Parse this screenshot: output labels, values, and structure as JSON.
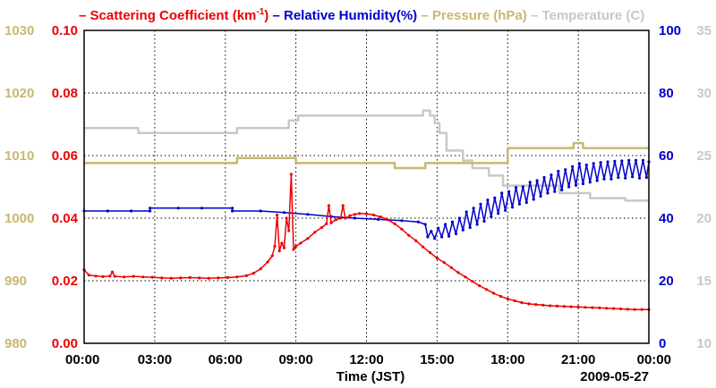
{
  "chart_data": {
    "type": "line",
    "title": "",
    "xlabel": "Time (JST)",
    "date_label": "2009-05-27",
    "x_unit": "hour",
    "xlim": [
      0,
      24
    ],
    "x_ticks": [
      0,
      3,
      6,
      9,
      12,
      15,
      18,
      21,
      24
    ],
    "x_tick_labels": [
      "00:00",
      "03:00",
      "06:00",
      "09:00",
      "12:00",
      "15:00",
      "18:00",
      "21:00",
      "00:00"
    ],
    "grid": true,
    "legend": {
      "position": "top",
      "entries": [
        {
          "name": "Scattering Coefficient (km",
          "sup": "-1",
          "suffix": ")",
          "color": "#ee0000"
        },
        {
          "name": "Relative Humidity(%)",
          "sup": "",
          "suffix": "",
          "color": "#0000cc"
        },
        {
          "name": "Pressure (hPa)",
          "sup": "",
          "suffix": "",
          "color": "#c8b870"
        },
        {
          "name": "Temperature (C)",
          "sup": "",
          "suffix": "",
          "color": "#c8c8c8"
        }
      ]
    },
    "axes": {
      "pressure": {
        "side": "left-outer",
        "color": "#c8b870",
        "ylim": [
          980,
          1030
        ],
        "ticks": [
          980,
          990,
          1000,
          1010,
          1020,
          1030
        ]
      },
      "scattering": {
        "side": "left-inner",
        "color": "#ee0000",
        "ylim": [
          0.0,
          0.1
        ],
        "ticks": [
          "0.00",
          "0.02",
          "0.04",
          "0.06",
          "0.08",
          "0.10"
        ]
      },
      "humidity": {
        "side": "right-inner",
        "color": "#0000cc",
        "ylim": [
          0,
          100
        ],
        "ticks": [
          0,
          20,
          40,
          60,
          80,
          100
        ]
      },
      "temperature": {
        "side": "right-outer",
        "color": "#c8c8c8",
        "ylim": [
          10,
          35
        ],
        "ticks": [
          10,
          15,
          20,
          25,
          30,
          35
        ]
      }
    },
    "series": [
      {
        "name": "Temperature (C)",
        "axis": "temperature",
        "color": "#c8c8c8",
        "style": "step",
        "width": 2.5,
        "markers": false,
        "points": [
          [
            0,
            27.2
          ],
          [
            2.3,
            27.2
          ],
          [
            2.3,
            26.8
          ],
          [
            6.5,
            26.8
          ],
          [
            6.5,
            27.2
          ],
          [
            8.7,
            27.2
          ],
          [
            8.7,
            27.8
          ],
          [
            9.1,
            27.8
          ],
          [
            9.1,
            28.2
          ],
          [
            14.4,
            28.2
          ],
          [
            14.4,
            28.6
          ],
          [
            14.7,
            28.6
          ],
          [
            14.7,
            28.2
          ],
          [
            14.9,
            28.2
          ],
          [
            14.9,
            27.6
          ],
          [
            15.1,
            27.6
          ],
          [
            15.1,
            26.8
          ],
          [
            15.4,
            26.8
          ],
          [
            15.4,
            25.4
          ],
          [
            16.1,
            25.4
          ],
          [
            16.1,
            24.6
          ],
          [
            16.5,
            24.6
          ],
          [
            16.5,
            24.0
          ],
          [
            17.2,
            24.0
          ],
          [
            17.2,
            23.4
          ],
          [
            17.8,
            23.4
          ],
          [
            17.8,
            22.6
          ],
          [
            19.5,
            22.6
          ],
          [
            19.5,
            22.6
          ],
          [
            20.2,
            22.6
          ],
          [
            20.2,
            22.0
          ],
          [
            21.5,
            22.0
          ],
          [
            21.5,
            21.6
          ],
          [
            23.0,
            21.6
          ],
          [
            23.0,
            21.4
          ],
          [
            24,
            21.4
          ]
        ]
      },
      {
        "name": "Pressure (hPa)",
        "axis": "pressure",
        "color": "#c8b870",
        "style": "step",
        "width": 2.5,
        "markers": false,
        "points": [
          [
            0,
            1008.8
          ],
          [
            6.5,
            1008.8
          ],
          [
            6.5,
            1009.6
          ],
          [
            9.0,
            1009.6
          ],
          [
            9.0,
            1008.8
          ],
          [
            13.2,
            1008.8
          ],
          [
            13.2,
            1008.0
          ],
          [
            14.5,
            1008.0
          ],
          [
            14.5,
            1008.8
          ],
          [
            18.0,
            1008.8
          ],
          [
            18.0,
            1011.2
          ],
          [
            20.8,
            1011.2
          ],
          [
            20.8,
            1012.0
          ],
          [
            21.2,
            1012.0
          ],
          [
            21.2,
            1011.2
          ],
          [
            24,
            1011.2
          ]
        ]
      },
      {
        "name": "Relative Humidity(%)",
        "axis": "humidity",
        "color": "#0000cc",
        "style": "line",
        "width": 1.5,
        "markers": true,
        "points": [
          [
            0.0,
            42.3
          ],
          [
            1.0,
            42.3
          ],
          [
            2.0,
            42.3
          ],
          [
            2.8,
            42.3
          ],
          [
            2.8,
            43.2
          ],
          [
            4.0,
            43.2
          ],
          [
            5.0,
            43.2
          ],
          [
            6.3,
            43.2
          ],
          [
            6.3,
            42.3
          ],
          [
            7.5,
            42.3
          ],
          [
            8.5,
            41.8
          ],
          [
            9.5,
            41.2
          ],
          [
            10.5,
            40.5
          ],
          [
            11.5,
            40.0
          ],
          [
            12.5,
            39.6
          ],
          [
            13.5,
            39.2
          ],
          [
            14.2,
            38.8
          ],
          [
            14.5,
            38.0
          ],
          [
            14.6,
            34.0
          ],
          [
            14.75,
            35.8
          ],
          [
            14.9,
            33.5
          ],
          [
            15.05,
            36.8
          ],
          [
            15.2,
            34.0
          ],
          [
            15.35,
            38.0
          ],
          [
            15.5,
            34.2
          ],
          [
            15.65,
            38.8
          ],
          [
            15.8,
            35.0
          ],
          [
            15.95,
            40.0
          ],
          [
            16.1,
            36.2
          ],
          [
            16.25,
            42.0
          ],
          [
            16.4,
            37.0
          ],
          [
            16.55,
            43.2
          ],
          [
            16.7,
            38.0
          ],
          [
            16.85,
            44.5
          ],
          [
            17.0,
            39.0
          ],
          [
            17.15,
            45.8
          ],
          [
            17.3,
            40.5
          ],
          [
            17.45,
            46.5
          ],
          [
            17.6,
            41.5
          ],
          [
            17.75,
            48.0
          ],
          [
            17.9,
            42.5
          ],
          [
            18.05,
            48.5
          ],
          [
            18.2,
            43.5
          ],
          [
            18.35,
            49.8
          ],
          [
            18.5,
            44.5
          ],
          [
            18.65,
            50.0
          ],
          [
            18.8,
            45.0
          ],
          [
            18.95,
            51.5
          ],
          [
            19.1,
            46.0
          ],
          [
            19.25,
            52.0
          ],
          [
            19.4,
            47.0
          ],
          [
            19.55,
            53.0
          ],
          [
            19.7,
            48.0
          ],
          [
            19.85,
            53.8
          ],
          [
            20.0,
            48.5
          ],
          [
            20.15,
            55.0
          ],
          [
            20.3,
            49.0
          ],
          [
            20.45,
            55.5
          ],
          [
            20.6,
            50.0
          ],
          [
            20.75,
            56.5
          ],
          [
            20.9,
            50.5
          ],
          [
            21.05,
            57.5
          ],
          [
            21.2,
            51.0
          ],
          [
            21.35,
            57.0
          ],
          [
            21.5,
            51.5
          ],
          [
            21.65,
            57.5
          ],
          [
            21.8,
            52.0
          ],
          [
            21.95,
            57.8
          ],
          [
            22.1,
            52.5
          ],
          [
            22.25,
            58.0
          ],
          [
            22.4,
            52.5
          ],
          [
            22.55,
            58.2
          ],
          [
            22.7,
            53.0
          ],
          [
            22.85,
            58.3
          ],
          [
            23.0,
            52.8
          ],
          [
            23.15,
            58.5
          ],
          [
            23.3,
            53.2
          ],
          [
            23.45,
            58.5
          ],
          [
            23.6,
            52.8
          ],
          [
            23.75,
            58.5
          ],
          [
            23.9,
            53.0
          ],
          [
            24.0,
            58.0
          ]
        ]
      },
      {
        "name": "Scattering Coefficient (km-1)",
        "axis": "scattering",
        "color": "#ee0000",
        "style": "line",
        "width": 1.5,
        "markers": true,
        "points": [
          [
            0.0,
            0.0235
          ],
          [
            0.2,
            0.0218
          ],
          [
            0.5,
            0.0215
          ],
          [
            0.8,
            0.0213
          ],
          [
            1.1,
            0.0215
          ],
          [
            1.2,
            0.0228
          ],
          [
            1.3,
            0.0214
          ],
          [
            1.7,
            0.0212
          ],
          [
            2.1,
            0.0214
          ],
          [
            2.5,
            0.0212
          ],
          [
            2.9,
            0.0211
          ],
          [
            3.3,
            0.0209
          ],
          [
            3.7,
            0.0208
          ],
          [
            4.1,
            0.0209
          ],
          [
            4.5,
            0.021
          ],
          [
            4.9,
            0.0209
          ],
          [
            5.3,
            0.0208
          ],
          [
            5.7,
            0.0209
          ],
          [
            6.1,
            0.021
          ],
          [
            6.5,
            0.0212
          ],
          [
            6.9,
            0.0216
          ],
          [
            7.2,
            0.0224
          ],
          [
            7.5,
            0.0238
          ],
          [
            7.8,
            0.026
          ],
          [
            8.0,
            0.028
          ],
          [
            8.1,
            0.031
          ],
          [
            8.2,
            0.041
          ],
          [
            8.3,
            0.0295
          ],
          [
            8.4,
            0.032
          ],
          [
            8.5,
            0.0305
          ],
          [
            8.6,
            0.04
          ],
          [
            8.7,
            0.036
          ],
          [
            8.8,
            0.054
          ],
          [
            8.9,
            0.03
          ],
          [
            9.0,
            0.031
          ],
          [
            9.2,
            0.032
          ],
          [
            9.5,
            0.0335
          ],
          [
            9.8,
            0.0355
          ],
          [
            10.1,
            0.037
          ],
          [
            10.3,
            0.0382
          ],
          [
            10.4,
            0.044
          ],
          [
            10.5,
            0.0385
          ],
          [
            10.7,
            0.0395
          ],
          [
            10.9,
            0.04
          ],
          [
            11.0,
            0.044
          ],
          [
            11.1,
            0.04
          ],
          [
            11.3,
            0.0408
          ],
          [
            11.5,
            0.0412
          ],
          [
            11.7,
            0.0415
          ],
          [
            12.0,
            0.0414
          ],
          [
            12.3,
            0.041
          ],
          [
            12.6,
            0.0404
          ],
          [
            12.9,
            0.0395
          ],
          [
            13.2,
            0.0382
          ],
          [
            13.5,
            0.0365
          ],
          [
            13.8,
            0.0345
          ],
          [
            14.1,
            0.0328
          ],
          [
            14.4,
            0.0308
          ],
          [
            14.7,
            0.029
          ],
          [
            15.0,
            0.0272
          ],
          [
            15.3,
            0.0258
          ],
          [
            15.6,
            0.0242
          ],
          [
            15.9,
            0.0226
          ],
          [
            16.2,
            0.0212
          ],
          [
            16.5,
            0.0198
          ],
          [
            16.8,
            0.0184
          ],
          [
            17.1,
            0.0172
          ],
          [
            17.4,
            0.016
          ],
          [
            17.7,
            0.015
          ],
          [
            18.0,
            0.0142
          ],
          [
            18.3,
            0.0136
          ],
          [
            18.6,
            0.013
          ],
          [
            18.9,
            0.0126
          ],
          [
            19.2,
            0.0124
          ],
          [
            19.5,
            0.0122
          ],
          [
            19.8,
            0.012
          ],
          [
            20.1,
            0.0119
          ],
          [
            20.4,
            0.0118
          ],
          [
            20.7,
            0.0117
          ],
          [
            21.0,
            0.0116
          ],
          [
            21.3,
            0.0115
          ],
          [
            21.6,
            0.0114
          ],
          [
            21.9,
            0.0113
          ],
          [
            22.2,
            0.0112
          ],
          [
            22.5,
            0.0111
          ],
          [
            22.8,
            0.011
          ],
          [
            23.1,
            0.0109
          ],
          [
            23.4,
            0.0108
          ],
          [
            23.7,
            0.0108
          ],
          [
            24.0,
            0.0108
          ]
        ]
      }
    ]
  }
}
